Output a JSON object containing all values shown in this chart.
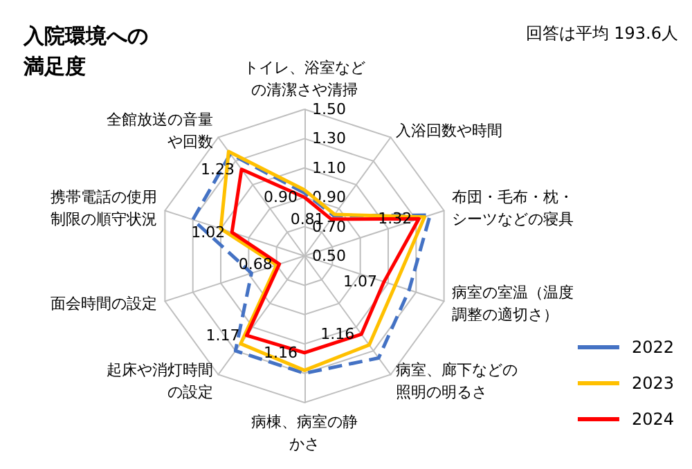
{
  "chart_data": {
    "type": "radar",
    "title": "入院環境への満足度",
    "annotations": [
      "回答は平均 193.6人"
    ],
    "categories": [
      "トイレ、浴室などの清潔さや清掃",
      "入浴回数や時間",
      "布団・毛布・枕・シーツなどの寝具",
      "病室の室温（温度調整の適切さ）",
      "病室、廊下などの照明の明るさ",
      "病棟、病室の静かさ",
      "起床や消灯時間の設定",
      "面会時間の設定",
      "携帯電話の使用制限の順守状況",
      "全館放送の音量や回数"
    ],
    "series": [
      {
        "name": "2022",
        "color": "#4472c4",
        "line_style": "dashed",
        "values": [
          0.93,
          0.84,
          1.4,
          1.25,
          1.36,
          1.3,
          1.3,
          0.88,
          1.3,
          1.36
        ]
      },
      {
        "name": "2023",
        "color": "#ffc000",
        "line_style": "solid",
        "values": [
          0.95,
          0.85,
          1.36,
          1.15,
          1.25,
          1.28,
          1.24,
          0.7,
          1.1,
          1.38
        ]
      },
      {
        "name": "2024",
        "color": "#ff0000",
        "line_style": "solid",
        "values": [
          0.9,
          0.81,
          1.32,
          1.07,
          1.16,
          1.16,
          1.17,
          0.68,
          1.02,
          1.23
        ],
        "value_labels": [
          "0.90",
          "0.81",
          "1.32",
          "1.07",
          "1.16",
          "1.16",
          "1.17",
          "0.68",
          "1.02",
          "1.23"
        ]
      }
    ],
    "ylim": [
      0.5,
      1.5
    ],
    "yticks": [
      {
        "value": 0.5,
        "label": "0.50"
      },
      {
        "value": 0.7,
        "label": "0.70"
      },
      {
        "value": 0.9,
        "label": "0.90"
      },
      {
        "value": 1.1,
        "label": "1.10"
      },
      {
        "value": 1.3,
        "label": "1.30"
      },
      {
        "value": 1.5,
        "label": "1.50"
      }
    ],
    "grid": true,
    "legend": "bottom right",
    "marker": "none"
  }
}
